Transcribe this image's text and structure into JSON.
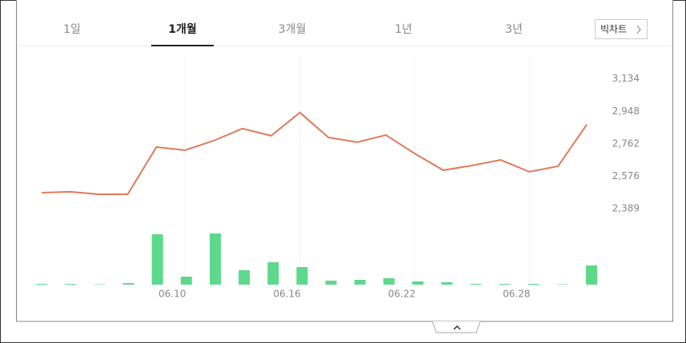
{
  "tabs": [
    "1일",
    "1개월",
    "3개월",
    "1년",
    "3년"
  ],
  "active_tab": 1,
  "button": "빅차트",
  "chart_data": {
    "type": "line",
    "categories": [
      null,
      null,
      null,
      null,
      null,
      "06.10",
      null,
      null,
      null,
      "06.16",
      null,
      null,
      null,
      "06.22",
      null,
      null,
      null,
      "06.28",
      null,
      null
    ],
    "series": [
      {
        "color": "#e07a5a",
        "values": [
          2481,
          2486,
          2472,
          2472,
          2743,
          2725,
          2780,
          2849,
          2808,
          2941,
          2798,
          2771,
          2812,
          2706,
          2610,
          2637,
          2669,
          2601,
          2633,
          2872
        ]
      },
      {
        "type": "bar",
        "axis": "y2",
        "color": "#5cd98b",
        "values": [
          1,
          1,
          0.5,
          2,
          63,
          10,
          64,
          18,
          28,
          22,
          5,
          6,
          8,
          4,
          3,
          1,
          1,
          1,
          0.5,
          24
        ]
      }
    ],
    "ylim": [
      2348,
      3220
    ],
    "yticks": [
      {
        "value": 2389,
        "label": "2,389"
      },
      {
        "value": 2576,
        "label": "2,576"
      },
      {
        "value": 2762,
        "label": "2,762"
      },
      {
        "value": 2948,
        "label": "2,948"
      },
      {
        "value": 3134,
        "label": "3,134"
      }
    ],
    "y2lim": [
      0,
      70
    ]
  }
}
